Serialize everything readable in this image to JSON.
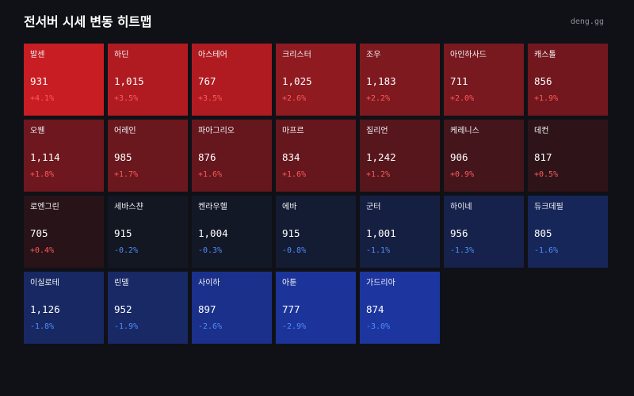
{
  "header": {
    "title": "전서버 시세 변동 히트맵",
    "source": "deng.gg"
  },
  "colors": {
    "background": "#0f1117",
    "up_text": "#ff5a5a",
    "down_text": "#4f8cff"
  },
  "cells": [
    {
      "name": "발센",
      "price": "931",
      "change": "+4.1%",
      "direction": "up",
      "color": "#c81d23"
    },
    {
      "name": "하딘",
      "price": "1,015",
      "change": "+3.5%",
      "direction": "up",
      "color": "#b01b21"
    },
    {
      "name": "아스테어",
      "price": "767",
      "change": "+3.5%",
      "direction": "up",
      "color": "#b01b21"
    },
    {
      "name": "크리스터",
      "price": "1,025",
      "change": "+2.6%",
      "direction": "up",
      "color": "#8f1a20"
    },
    {
      "name": "조우",
      "price": "1,183",
      "change": "+2.2%",
      "direction": "up",
      "color": "#7f1920"
    },
    {
      "name": "아인하사드",
      "price": "711",
      "change": "+2.0%",
      "direction": "up",
      "color": "#78181f"
    },
    {
      "name": "캐스톨",
      "price": "856",
      "change": "+1.9%",
      "direction": "up",
      "color": "#72171e"
    },
    {
      "name": "오웬",
      "price": "1,114",
      "change": "+1.8%",
      "direction": "up",
      "color": "#6e171e"
    },
    {
      "name": "어레인",
      "price": "985",
      "change": "+1.7%",
      "direction": "up",
      "color": "#6a171d"
    },
    {
      "name": "파아그리오",
      "price": "876",
      "change": "+1.6%",
      "direction": "up",
      "color": "#66161d"
    },
    {
      "name": "마프르",
      "price": "834",
      "change": "+1.6%",
      "direction": "up",
      "color": "#66161d"
    },
    {
      "name": "질리언",
      "price": "1,242",
      "change": "+1.2%",
      "direction": "up",
      "color": "#56161c"
    },
    {
      "name": "케레니스",
      "price": "906",
      "change": "+0.9%",
      "direction": "up",
      "color": "#44151b"
    },
    {
      "name": "데컨",
      "price": "817",
      "change": "+0.5%",
      "direction": "up",
      "color": "#2e1419"
    },
    {
      "name": "로엔그린",
      "price": "705",
      "change": "+0.4%",
      "direction": "up",
      "color": "#271318"
    },
    {
      "name": "세바스챤",
      "price": "915",
      "change": "-0.2%",
      "direction": "down",
      "color": "#131722"
    },
    {
      "name": "켄라우헬",
      "price": "1,004",
      "change": "-0.3%",
      "direction": "down",
      "color": "#131826"
    },
    {
      "name": "에바",
      "price": "915",
      "change": "-0.8%",
      "direction": "down",
      "color": "#141c33"
    },
    {
      "name": "군터",
      "price": "1,001",
      "change": "-1.1%",
      "direction": "down",
      "color": "#151f41"
    },
    {
      "name": "하이네",
      "price": "956",
      "change": "-1.3%",
      "direction": "down",
      "color": "#16224b"
    },
    {
      "name": "듀크데필",
      "price": "805",
      "change": "-1.6%",
      "direction": "down",
      "color": "#172659"
    },
    {
      "name": "이실로테",
      "price": "1,126",
      "change": "-1.8%",
      "direction": "down",
      "color": "#182862"
    },
    {
      "name": "린델",
      "price": "952",
      "change": "-1.9%",
      "direction": "down",
      "color": "#182966"
    },
    {
      "name": "사이하",
      "price": "897",
      "change": "-2.6%",
      "direction": "down",
      "color": "#1b308a"
    },
    {
      "name": "아툰",
      "price": "777",
      "change": "-2.9%",
      "direction": "down",
      "color": "#1c3499"
    },
    {
      "name": "가드리아",
      "price": "874",
      "change": "-3.0%",
      "direction": "down",
      "color": "#1d359f"
    }
  ]
}
